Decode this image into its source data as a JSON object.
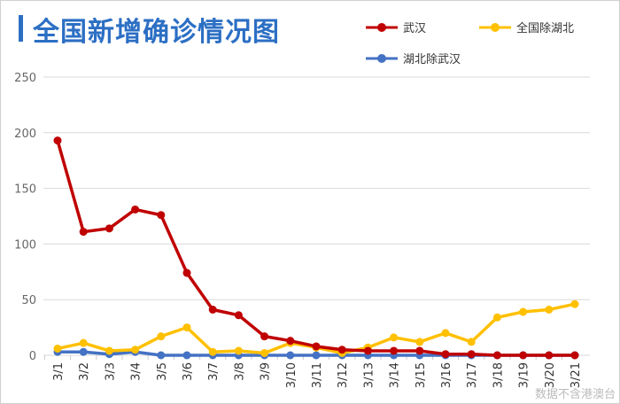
{
  "title": "全国新增确诊情况图",
  "watermark": "数据不含港澳台",
  "chart_data": {
    "type": "line",
    "title": "全国新增确诊情况图",
    "categories": [
      "3/1",
      "3/2",
      "3/3",
      "3/4",
      "3/5",
      "3/6",
      "3/7",
      "3/8",
      "3/9",
      "3/10",
      "3/11",
      "3/12",
      "3/13",
      "3/14",
      "3/15",
      "3/16",
      "3/17",
      "3/18",
      "3/19",
      "3/20",
      "3/21"
    ],
    "ylim": [
      0,
      250
    ],
    "yticks": [
      0,
      50,
      100,
      150,
      200,
      250
    ],
    "grid": true,
    "legend_position": "top-right",
    "series": [
      {
        "name": "武汉",
        "color": "#c00000",
        "values": [
          193,
          111,
          114,
          131,
          126,
          74,
          41,
          36,
          17,
          13,
          8,
          5,
          4,
          4,
          4,
          1,
          1,
          0,
          0,
          0,
          0
        ]
      },
      {
        "name": "全国除湖北",
        "color": "#ffc000",
        "values": [
          6,
          11,
          4,
          5,
          17,
          25,
          3,
          4,
          2,
          11,
          7,
          2,
          7,
          16,
          12,
          20,
          12,
          34,
          39,
          41,
          46
        ]
      },
      {
        "name": "湖北除武汉",
        "color": "#4472c4",
        "values": [
          3,
          3,
          1,
          3,
          0,
          0,
          0,
          0,
          0,
          0,
          0,
          0,
          0,
          0,
          0,
          0,
          0,
          0,
          0,
          0,
          0
        ]
      }
    ]
  }
}
